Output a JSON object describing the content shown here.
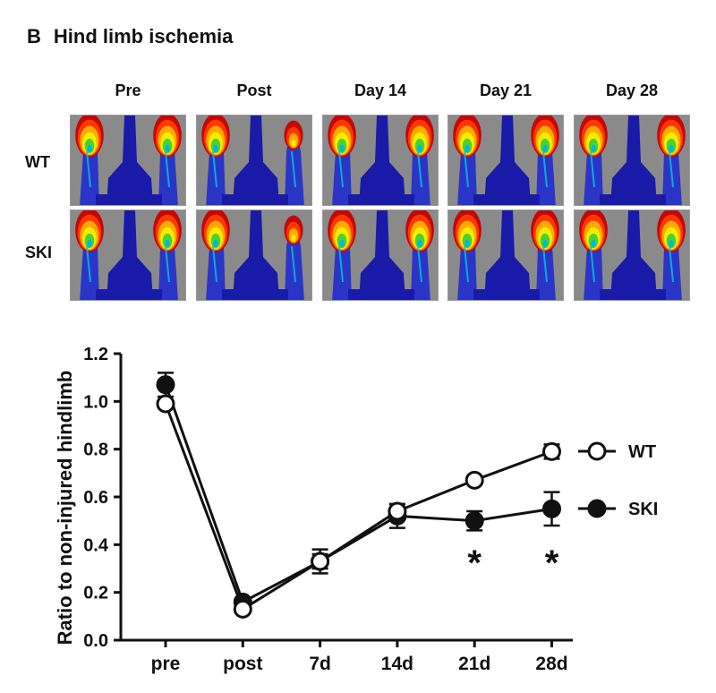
{
  "panel": {
    "letter": "B",
    "title": "Hind limb ischemia"
  },
  "image_grid": {
    "columns": [
      "Pre",
      "Post",
      "Day 14",
      "Day 21",
      "Day 28"
    ],
    "rows": [
      "WT",
      "SKI"
    ]
  },
  "colors": {
    "line": "#111111",
    "background": "#ffffff",
    "scan_background": "#8a8a8a",
    "scan_body": "#1a1aa8"
  },
  "chart_data": {
    "type": "line",
    "categories": [
      "pre",
      "post",
      "7d",
      "14d",
      "21d",
      "28d"
    ],
    "ylabel": "Ratio to non-injured hindlimb",
    "xlabel": "",
    "ylim": [
      0,
      1.2
    ],
    "yticks": [
      "0.0",
      "0.2",
      "0.4",
      "0.6",
      "0.8",
      "1.0",
      "1.2"
    ],
    "series": [
      {
        "name": "WT",
        "marker": "open-circle",
        "values": [
          0.99,
          0.13,
          0.33,
          0.54,
          0.67,
          0.79
        ],
        "errors": [
          0.01,
          0.01,
          0.03,
          0.03,
          0.01,
          0.03
        ]
      },
      {
        "name": "SKI",
        "marker": "filled-circle",
        "values": [
          1.07,
          0.16,
          0.33,
          0.52,
          0.5,
          0.55
        ],
        "errors": [
          0.05,
          0.01,
          0.05,
          0.05,
          0.04,
          0.07
        ]
      }
    ],
    "significance": [
      {
        "category": "21d",
        "label": "*"
      },
      {
        "category": "28d",
        "label": "*"
      }
    ],
    "legend_position": "right"
  }
}
